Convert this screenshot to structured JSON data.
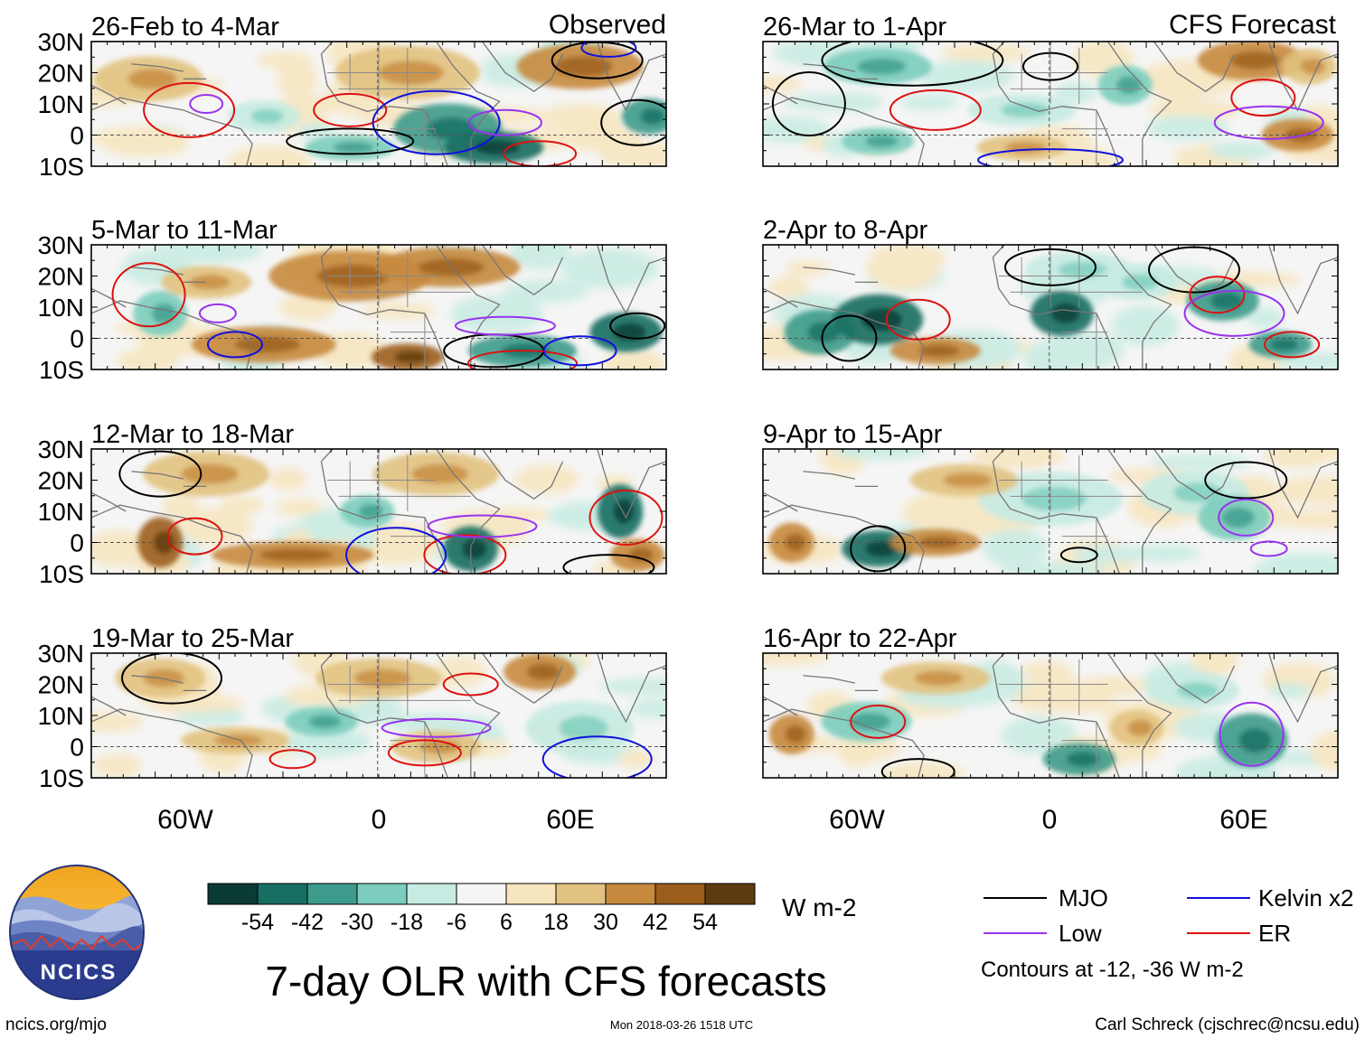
{
  "title": "7-day OLR with CFS forecasts",
  "units": "W m-2",
  "left_column_label": "Observed",
  "right_column_label": "CFS Forecast",
  "latitude_labels": [
    "30N",
    "20N",
    "10N",
    "0",
    "10S"
  ],
  "longitude_labels": [
    "60W",
    "0",
    "60E"
  ],
  "observed_panels": [
    {
      "period": "26-Feb to 4-Mar"
    },
    {
      "period": "5-Mar to 11-Mar"
    },
    {
      "period": "12-Mar to 18-Mar"
    },
    {
      "period": "19-Mar to 25-Mar"
    }
  ],
  "forecast_panels": [
    {
      "period": "26-Mar to 1-Apr"
    },
    {
      "period": "2-Apr to 8-Apr"
    },
    {
      "period": "9-Apr to 15-Apr"
    },
    {
      "period": "16-Apr to 22-Apr"
    }
  ],
  "colorbar": {
    "colors": [
      "#0b3b35",
      "#176e63",
      "#3d9b8c",
      "#7ccdbd",
      "#c6ebe2",
      "#f5f5f5",
      "#f7e5bd",
      "#e2c280",
      "#c68a3e",
      "#9b5e1d",
      "#5e3b0e"
    ],
    "tick_labels": [
      "-54",
      "-42",
      "-30",
      "-18",
      "-6",
      "6",
      "18",
      "30",
      "42",
      "54"
    ]
  },
  "legend": {
    "items": [
      {
        "label": "MJO",
        "color": "#000000"
      },
      {
        "label": "Kelvin x2",
        "color": "#1010dd"
      },
      {
        "label": "Low",
        "color": "#9933ee"
      },
      {
        "label": "ER",
        "color": "#dd1111"
      }
    ],
    "note": "Contours at -12, -36 W m-2"
  },
  "footer": {
    "left": "ncics.org/mjo",
    "center": "Mon 2018-03-26 1518 UTC",
    "right": "Carl Schreck (cjschrec@ncsu.edu)"
  },
  "logo_text": "NCICS"
}
